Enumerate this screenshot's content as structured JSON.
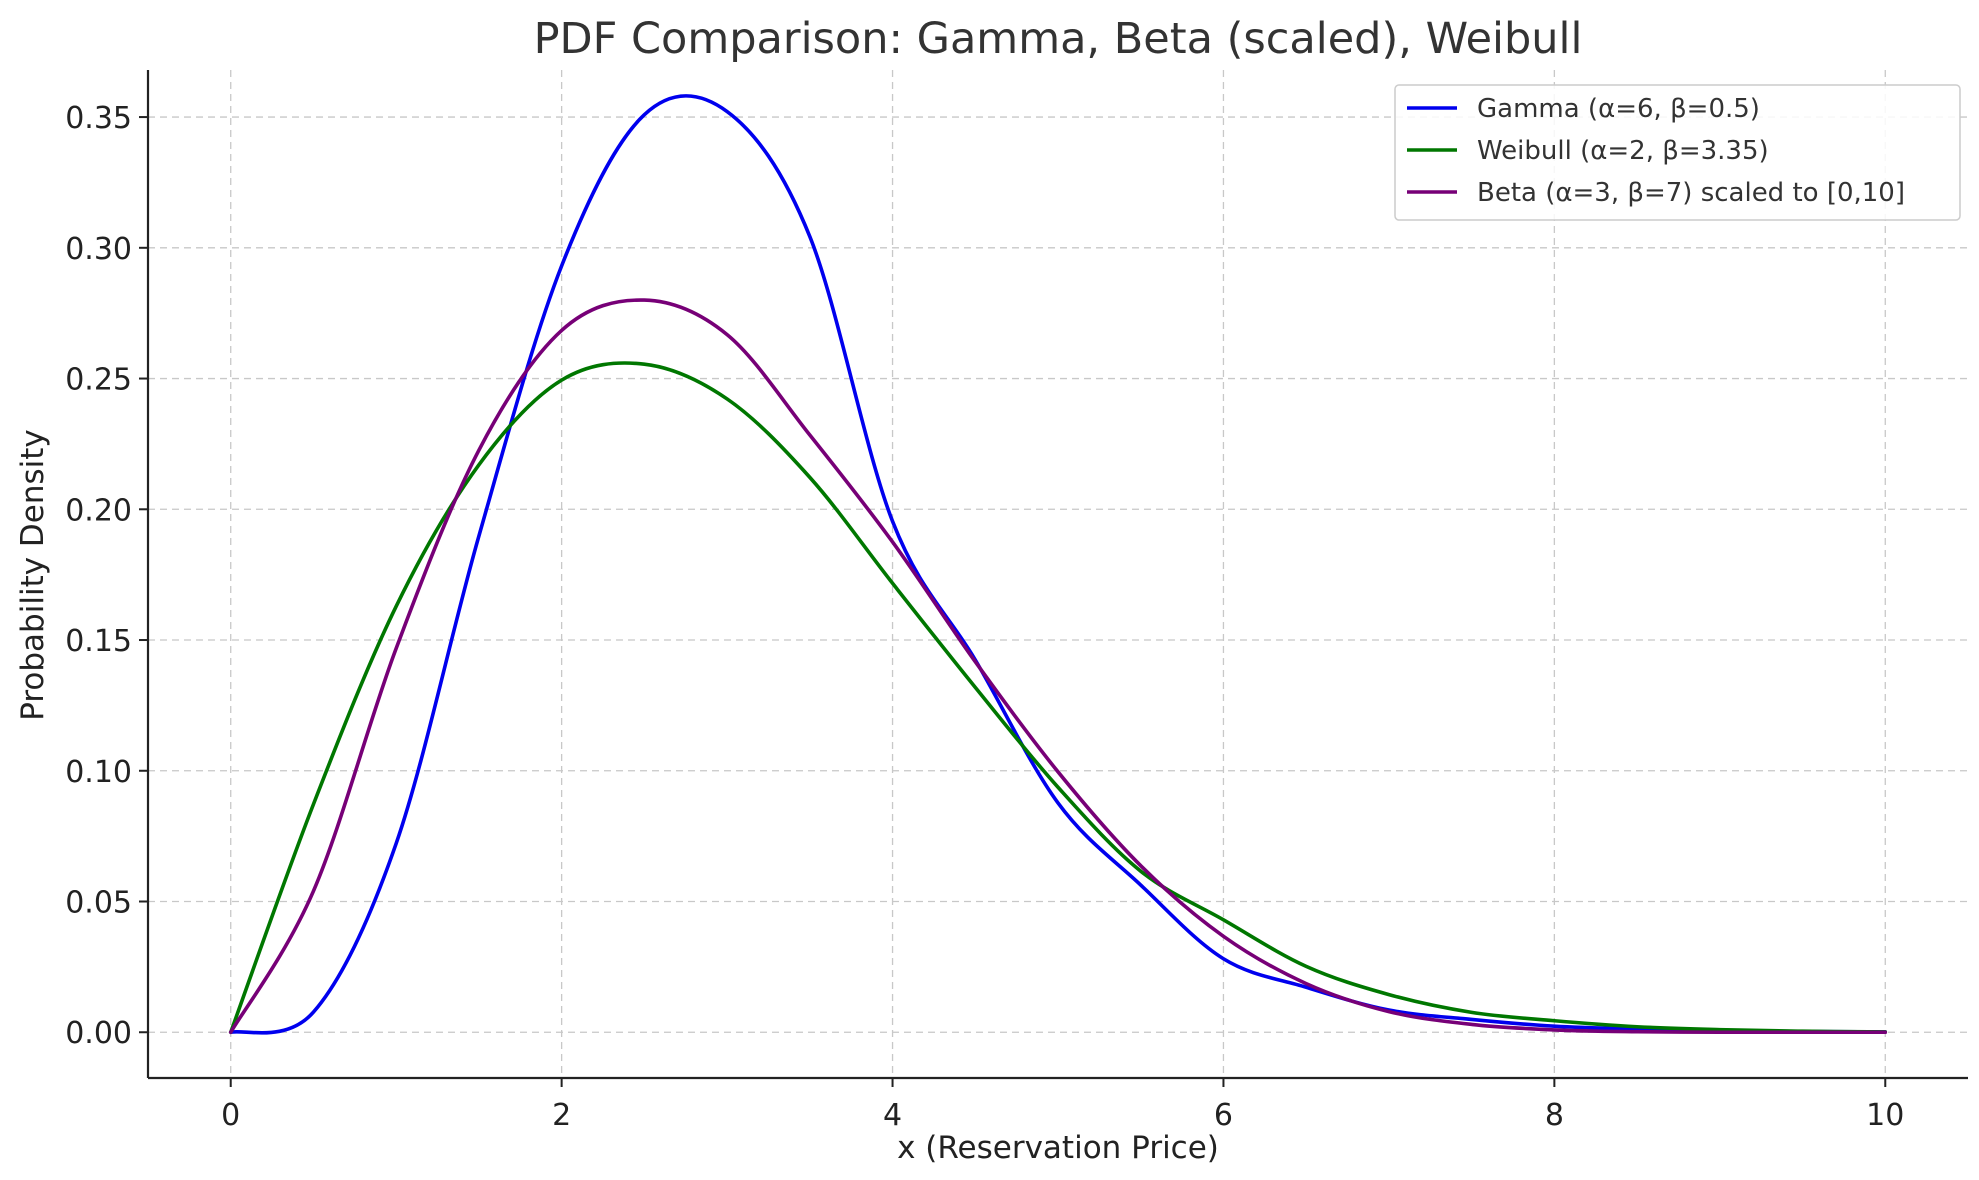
{
  "chart_data": {
    "type": "line",
    "title": "PDF Comparison: Gamma, Beta (scaled), Weibull",
    "xlabel": "x (Reservation Price)",
    "ylabel": "Probability Density",
    "xlim": [
      -0.5,
      10.5
    ],
    "ylim": [
      -0.0175,
      0.368
    ],
    "x_ticks": [
      0,
      2,
      4,
      6,
      8,
      10
    ],
    "x_tick_labels": [
      "0",
      "2",
      "4",
      "6",
      "8",
      "10"
    ],
    "y_ticks": [
      0.0,
      0.05,
      0.1,
      0.15,
      0.2,
      0.25,
      0.3,
      0.35
    ],
    "y_tick_labels": [
      "0.00",
      "0.05",
      "0.10",
      "0.15",
      "0.20",
      "0.25",
      "0.30",
      "0.35"
    ],
    "grid": true,
    "legend_position": "top-right",
    "x": [
      0,
      0.5,
      1,
      1.5,
      2,
      2.5,
      3,
      3.5,
      4,
      4.5,
      5,
      5.5,
      6,
      6.5,
      7,
      7.5,
      8,
      8.5,
      9,
      9.5,
      10
    ],
    "series": [
      {
        "name": "Gamma (α=6, β=0.5)",
        "color": "#0000ee",
        "values": [
          0.0,
          0.0077,
          0.0722,
          0.1898,
          0.2931,
          0.3509,
          0.3521,
          0.3043,
          0.1954,
          0.1424,
          0.0877,
          0.0563,
          0.0281,
          0.0172,
          0.0085,
          0.0049,
          0.0023,
          0.0012,
          0.0006,
          0.0003,
          0.0001
        ]
      },
      {
        "name": "Weibull (α=2, β=3.35)",
        "color": "#007700",
        "values": [
          0.0,
          0.0872,
          0.1629,
          0.217,
          0.2494,
          0.2555,
          0.2422,
          0.2122,
          0.1717,
          0.1319,
          0.0937,
          0.0616,
          0.043,
          0.0252,
          0.0144,
          0.0076,
          0.0044,
          0.0021,
          0.001,
          0.0004,
          0.0001
        ]
      },
      {
        "name": "Beta (α=3, β=7) scaled to [0,10]",
        "color": "#770077",
        "values": [
          0.0,
          0.054,
          0.1468,
          0.2226,
          0.2684,
          0.28,
          0.2668,
          0.2284,
          0.1875,
          0.1417,
          0.0996,
          0.0637,
          0.0367,
          0.0186,
          0.0079,
          0.003,
          0.0009,
          0.0002,
          0.0,
          0.0,
          0.0
        ]
      }
    ]
  }
}
